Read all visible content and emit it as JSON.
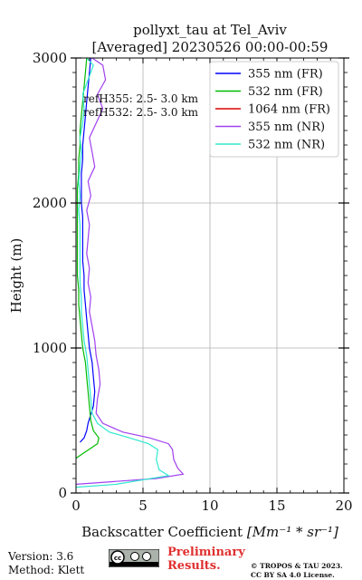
{
  "chart_data": {
    "type": "line",
    "title": "pollyxt_tau at Tel_Aviv",
    "subtitle": "[Averaged] 20230526 00:00-00:59",
    "xlabel": "Backscatter Coefficient",
    "xlabel_unit": "[Mm⁻¹ * sr⁻¹]",
    "ylabel": "Height (m)",
    "xlim": [
      0,
      20
    ],
    "ylim": [
      0,
      3000
    ],
    "xticks": [
      0,
      5,
      10,
      15,
      20
    ],
    "yticks": [
      0,
      1000,
      2000,
      3000
    ],
    "grid": true,
    "legend_position": "top-right",
    "annotations": [
      "refH355:  2.5- 3.0 km",
      "refH532:  2.5- 3.0 km"
    ],
    "series": [
      {
        "name": "355 nm (FR)",
        "color": "#0000ff",
        "points": [
          [
            0.3,
            350
          ],
          [
            0.6,
            380
          ],
          [
            0.8,
            430
          ],
          [
            0.9,
            480
          ],
          [
            1.1,
            540
          ],
          [
            1.3,
            600
          ],
          [
            1.4,
            700
          ],
          [
            1.3,
            800
          ],
          [
            1.2,
            900
          ],
          [
            1.0,
            1000
          ],
          [
            0.9,
            1100
          ],
          [
            0.8,
            1200
          ],
          [
            0.7,
            1300
          ],
          [
            0.6,
            1400
          ],
          [
            0.6,
            1500
          ],
          [
            0.5,
            1600
          ],
          [
            0.5,
            1700
          ],
          [
            0.5,
            1800
          ],
          [
            0.5,
            1900
          ],
          [
            0.4,
            2000
          ],
          [
            0.4,
            2100
          ],
          [
            0.4,
            2200
          ],
          [
            0.5,
            2300
          ],
          [
            0.5,
            2400
          ],
          [
            0.6,
            2500
          ],
          [
            0.7,
            2600
          ],
          [
            0.8,
            2700
          ],
          [
            0.9,
            2800
          ],
          [
            1.0,
            2900
          ],
          [
            1.1,
            3000
          ]
        ]
      },
      {
        "name": "532 nm (FR)",
        "color": "#00bb00",
        "points": [
          [
            0.0,
            240
          ],
          [
            0.8,
            290
          ],
          [
            1.6,
            340
          ],
          [
            1.7,
            380
          ],
          [
            1.3,
            430
          ],
          [
            1.1,
            500
          ],
          [
            1.0,
            600
          ],
          [
            0.9,
            700
          ],
          [
            0.8,
            800
          ],
          [
            0.7,
            900
          ],
          [
            0.5,
            1000
          ],
          [
            0.4,
            1100
          ],
          [
            0.3,
            1200
          ],
          [
            0.2,
            1300
          ],
          [
            0.2,
            1400
          ],
          [
            0.1,
            1500
          ],
          [
            0.1,
            1600
          ],
          [
            0.1,
            1700
          ],
          [
            0.1,
            1800
          ],
          [
            0.1,
            1900
          ],
          [
            0.1,
            2000
          ],
          [
            0.1,
            2100
          ],
          [
            0.2,
            2200
          ],
          [
            0.2,
            2300
          ],
          [
            0.3,
            2400
          ],
          [
            0.3,
            2500
          ],
          [
            0.4,
            2600
          ],
          [
            0.5,
            2700
          ],
          [
            0.6,
            2800
          ],
          [
            0.7,
            2900
          ],
          [
            0.8,
            3000
          ]
        ]
      },
      {
        "name": "1064 nm (FR)",
        "color": "#dd0000",
        "points": []
      },
      {
        "name": "355 nm (NR)",
        "color": "#a040f0",
        "points": [
          [
            0.0,
            60
          ],
          [
            3.0,
            80
          ],
          [
            6.0,
            100
          ],
          [
            8.0,
            130
          ],
          [
            7.6,
            170
          ],
          [
            7.3,
            230
          ],
          [
            7.2,
            300
          ],
          [
            6.9,
            340
          ],
          [
            5.5,
            380
          ],
          [
            3.5,
            420
          ],
          [
            2.0,
            480
          ],
          [
            1.5,
            550
          ],
          [
            1.6,
            650
          ],
          [
            1.8,
            750
          ],
          [
            1.7,
            850
          ],
          [
            1.5,
            950
          ],
          [
            1.4,
            1050
          ],
          [
            1.2,
            1150
          ],
          [
            1.0,
            1250
          ],
          [
            1.1,
            1350
          ],
          [
            0.9,
            1450
          ],
          [
            1.0,
            1550
          ],
          [
            0.8,
            1650
          ],
          [
            0.9,
            1750
          ],
          [
            1.0,
            1850
          ],
          [
            0.8,
            1950
          ],
          [
            1.1,
            2050
          ],
          [
            0.9,
            2150
          ],
          [
            1.4,
            2250
          ],
          [
            1.2,
            2350
          ],
          [
            1.0,
            2450
          ],
          [
            1.5,
            2550
          ],
          [
            2.0,
            2650
          ],
          [
            1.6,
            2750
          ],
          [
            2.2,
            2850
          ],
          [
            2.0,
            2950
          ],
          [
            1.2,
            3000
          ]
        ]
      },
      {
        "name": "532 nm (NR)",
        "color": "#30e8d0",
        "points": [
          [
            0.0,
            40
          ],
          [
            3.0,
            60
          ],
          [
            6.9,
            120
          ],
          [
            6.2,
            160
          ],
          [
            6.0,
            230
          ],
          [
            6.1,
            300
          ],
          [
            5.4,
            340
          ],
          [
            4.0,
            380
          ],
          [
            2.5,
            420
          ],
          [
            1.6,
            480
          ],
          [
            1.2,
            550
          ],
          [
            1.1,
            650
          ],
          [
            1.0,
            750
          ],
          [
            0.9,
            850
          ],
          [
            0.8,
            950
          ],
          [
            0.6,
            1050
          ],
          [
            0.5,
            1150
          ],
          [
            0.4,
            1250
          ],
          [
            0.4,
            1350
          ],
          [
            0.3,
            1450
          ],
          [
            0.3,
            1550
          ],
          [
            0.3,
            1650
          ],
          [
            0.3,
            1750
          ],
          [
            0.3,
            1850
          ],
          [
            0.2,
            1950
          ],
          [
            0.3,
            2050
          ],
          [
            0.2,
            2150
          ],
          [
            0.3,
            2250
          ],
          [
            0.4,
            2350
          ],
          [
            0.3,
            2450
          ],
          [
            0.5,
            2550
          ],
          [
            0.6,
            2650
          ],
          [
            0.5,
            2750
          ],
          [
            0.9,
            2850
          ],
          [
            1.3,
            2950
          ],
          [
            0.8,
            3000
          ]
        ]
      }
    ]
  },
  "footer": {
    "version": "Version: 3.6",
    "method": "Method: Klett",
    "preliminary_line1": "Preliminary",
    "preliminary_line2": "Results.",
    "license_line1": "© TROPOS & TAU 2023.",
    "license_line2": "CC BY SA 4.0 License."
  },
  "colors": {
    "preliminary": "#e03030",
    "grid": "#b0b0b0"
  },
  "icons": [
    "cc-by-sa-license-badge"
  ]
}
